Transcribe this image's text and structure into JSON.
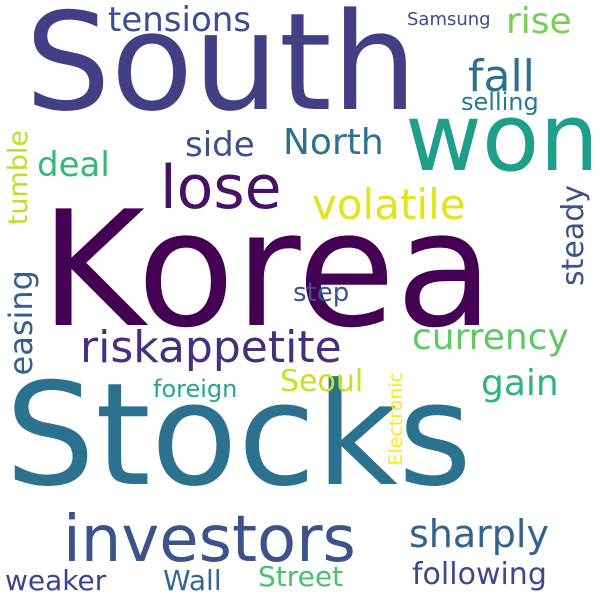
{
  "words": [
    {
      "text": "Korea",
      "color": "#440154"
    },
    {
      "text": "Stocks",
      "color": "#2c728e"
    },
    {
      "text": "South",
      "color": "#423f85"
    },
    {
      "text": "won",
      "color": "#1f9e89"
    },
    {
      "text": "investors",
      "color": "#3b528b"
    },
    {
      "text": "lose",
      "color": "#471164"
    },
    {
      "text": "riskappetite",
      "color": "#46307e"
    },
    {
      "text": "volatile",
      "color": "#e1e418"
    },
    {
      "text": "fall",
      "color": "#2e6f8e"
    },
    {
      "text": "North",
      "color": "#2d718e"
    },
    {
      "text": "side",
      "color": "#3c508b"
    },
    {
      "text": "tensions",
      "color": "#3c4f8a"
    },
    {
      "text": "rise",
      "color": "#75d054"
    },
    {
      "text": "Samsung",
      "color": "#3e4a89"
    },
    {
      "text": "selling",
      "color": "#2a788e"
    },
    {
      "text": "deal",
      "color": "#35b779"
    },
    {
      "text": "currency",
      "color": "#5ec962"
    },
    {
      "text": "Seoul",
      "color": "#c8e020"
    },
    {
      "text": "gain",
      "color": "#2fb47c"
    },
    {
      "text": "sharply",
      "color": "#33638d"
    },
    {
      "text": "following",
      "color": "#3f4889"
    },
    {
      "text": "Street",
      "color": "#4ac16d"
    },
    {
      "text": "Wall",
      "color": "#31688e"
    },
    {
      "text": "weaker",
      "color": "#404387"
    },
    {
      "text": "step",
      "color": "#3a548c"
    },
    {
      "text": "foreign",
      "color": "#22a884"
    },
    {
      "text": "easing",
      "color": "#355f8d"
    },
    {
      "text": "tumble",
      "color": "#bddf26"
    },
    {
      "text": "steady",
      "color": "#3b528b"
    },
    {
      "text": "Electronic",
      "color": "#fde725"
    }
  ]
}
